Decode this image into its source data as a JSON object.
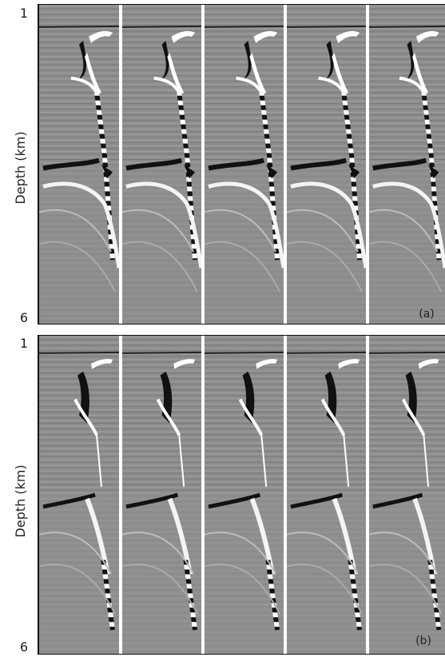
{
  "panels": [
    {
      "depth_top": "1",
      "depth_bottom": "6",
      "axis_label": "Depth (km)",
      "label": "(a)"
    },
    {
      "depth_top": "1",
      "depth_bottom": "6",
      "axis_label": "Depth (km)",
      "label": "(b)"
    }
  ]
}
